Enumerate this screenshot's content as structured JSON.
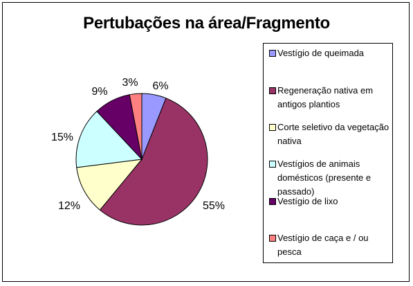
{
  "chart_data": {
    "type": "pie",
    "title": "Pertubações na área/Fragmento",
    "legend_position": "right",
    "slices": [
      {
        "label": "Vestígio de queimada",
        "value": 6,
        "value_label": "6%",
        "color": "#9999ff"
      },
      {
        "label": "Regeneração nativa em antigos  plantios",
        "value": 55,
        "value_label": "55%",
        "color": "#993366"
      },
      {
        "label": "Corte seletivo da vegetação nativa",
        "value": 12,
        "value_label": "12%",
        "color": "#ffffcc"
      },
      {
        "label": "Vestígios de animais domésticos (presente e passado)",
        "value": 15,
        "value_label": "15%",
        "color": "#ccffff"
      },
      {
        "label": "Vestígio de lixo",
        "value": 9,
        "value_label": "9%",
        "color": "#660066"
      },
      {
        "label": "Vestígio de caça e / ou pesca",
        "value": 3,
        "value_label": "3%",
        "color": "#ff8080"
      }
    ]
  }
}
